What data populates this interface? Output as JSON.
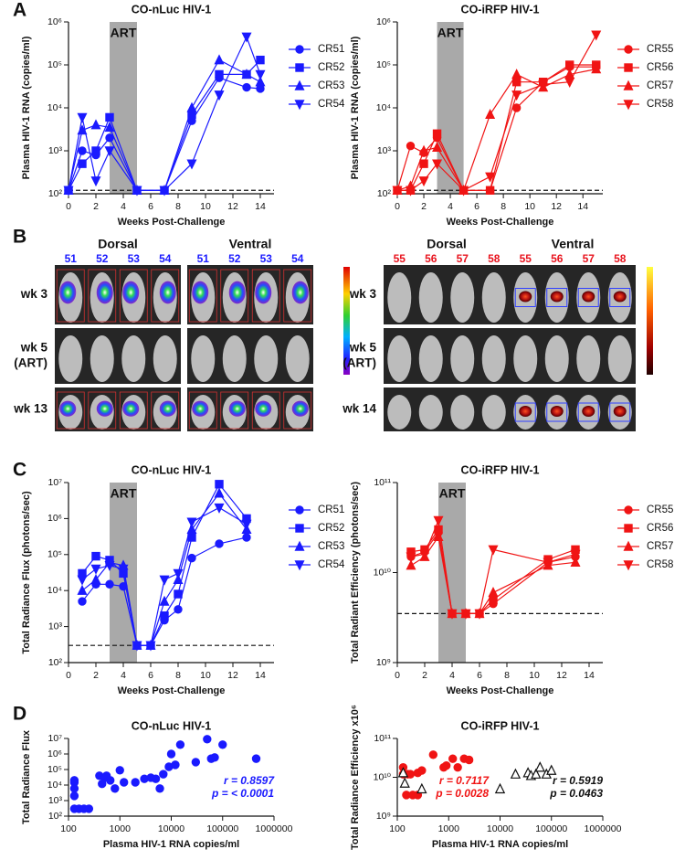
{
  "panel_labels": [
    "A",
    "B",
    "C",
    "D"
  ],
  "imaging": [
    {
      "views": [
        {
          "name": "Dorsal",
          "ids": [
            "51",
            "52",
            "53",
            "54"
          ]
        },
        {
          "name": "Ventral",
          "ids": [
            "51",
            "52",
            "53",
            "54"
          ]
        }
      ],
      "rows": [
        [
          "wk 3"
        ],
        [
          "wk 5",
          "(ART)"
        ],
        [
          "wk 13"
        ]
      ],
      "id_color": "#1a1aff"
    },
    {
      "views": [
        {
          "name": "Dorsal",
          "ids": [
            "55",
            "56",
            "57",
            "58"
          ]
        },
        {
          "name": "Ventral",
          "ids": [
            "55",
            "56",
            "57",
            "58"
          ]
        }
      ],
      "rows": [
        [
          "wk 3"
        ],
        [
          "wk 5",
          "(ART)"
        ],
        [
          "wk 14"
        ]
      ],
      "id_color": "#e8141e"
    }
  ],
  "chart_data": [
    {
      "type": "line",
      "title": "CO-nLuc HIV-1",
      "x_label": "Weeks Post-Challenge",
      "y_label": "Plasma HIV-1 RNA (copies/ml)",
      "x": [
        0,
        1,
        2,
        3,
        5,
        7,
        9,
        11,
        13,
        14
      ],
      "xlim": [
        0,
        15
      ],
      "xticks": [
        0,
        2,
        4,
        6,
        8,
        10,
        12,
        14
      ],
      "ylim": [
        100,
        1000000
      ],
      "yscale": "log",
      "yticks": [
        {
          "value": 100,
          "label": "10²"
        },
        {
          "value": 1000,
          "label": "10³"
        },
        {
          "value": 10000,
          "label": "10⁴"
        },
        {
          "value": 100000,
          "label": "10⁵"
        },
        {
          "value": 1000000,
          "label": "10⁶"
        }
      ],
      "shaded_region": {
        "xlim": [
          3,
          5
        ],
        "label": "ART"
      },
      "reference_line": 120,
      "legend": "right",
      "series": [
        {
          "name": "CR51",
          "color": "#1a1aff",
          "marker": "circle",
          "values": [
            120,
            1000,
            800,
            2000,
            120,
            120,
            5000,
            50000,
            30000,
            28000
          ]
        },
        {
          "name": "CR52",
          "color": "#1a1aff",
          "marker": "square",
          "values": [
            120,
            500,
            1000,
            6000,
            120,
            120,
            7000,
            60000,
            60000,
            130000
          ]
        },
        {
          "name": "CR53",
          "color": "#1a1aff",
          "marker": "triangle-up",
          "values": [
            120,
            3000,
            4000,
            3500,
            120,
            120,
            10000,
            130000,
            60000,
            40000
          ]
        },
        {
          "name": "CR54",
          "color": "#1a1aff",
          "marker": "triangle-down",
          "values": [
            120,
            6000,
            200,
            1000,
            120,
            120,
            500,
            20000,
            450000,
            60000
          ]
        }
      ]
    },
    {
      "type": "line",
      "title": "CO-iRFP HIV-1",
      "x_label": "Weeks Post-Challenge",
      "y_label": "Plasma HIV-1 RNA (copies/ml)",
      "x": [
        0,
        1,
        2,
        3,
        5,
        7,
        9,
        11,
        13,
        15
      ],
      "xlim": [
        0,
        15.5
      ],
      "xticks": [
        0,
        2,
        4,
        6,
        8,
        10,
        12,
        14
      ],
      "ylim": [
        100,
        1000000
      ],
      "yscale": "log",
      "yticks": [
        {
          "value": 100,
          "label": "10²"
        },
        {
          "value": 1000,
          "label": "10³"
        },
        {
          "value": 10000,
          "label": "10⁴"
        },
        {
          "value": 100000,
          "label": "10⁵"
        },
        {
          "value": 1000000,
          "label": "10⁶"
        }
      ],
      "shaded_region": {
        "xlim": [
          3,
          5
        ],
        "label": "ART"
      },
      "reference_line": 120,
      "legend": "right",
      "series": [
        {
          "name": "CR55",
          "color": "#f01414",
          "marker": "circle",
          "values": [
            120,
            1300,
            900,
            2000,
            120,
            120,
            10000,
            40000,
            90000,
            90000
          ]
        },
        {
          "name": "CR56",
          "color": "#f01414",
          "marker": "square",
          "values": [
            120,
            120,
            500,
            2500,
            120,
            120,
            40000,
            40000,
            100000,
            100000
          ]
        },
        {
          "name": "CR57",
          "color": "#f01414",
          "marker": "triangle-up",
          "values": [
            120,
            150,
            1000,
            1200,
            120,
            7000,
            60000,
            30000,
            60000,
            80000
          ]
        },
        {
          "name": "CR58",
          "color": "#f01414",
          "marker": "triangle-down",
          "values": [
            120,
            120,
            200,
            500,
            120,
            250,
            20000,
            35000,
            40000,
            500000
          ]
        }
      ]
    },
    {
      "type": "line",
      "title": "CO-nLuc HIV-1",
      "x_label": "Weeks Post-Challenge",
      "y_label": "Total Radiance Flux (photons/sec)",
      "x": [
        1,
        2,
        3,
        4,
        5,
        6,
        7,
        8,
        9,
        11,
        13
      ],
      "xlim": [
        0,
        15
      ],
      "xticks": [
        0,
        2,
        4,
        6,
        8,
        10,
        12,
        14
      ],
      "ylim": [
        100,
        10000000
      ],
      "yscale": "log",
      "yticks": [
        {
          "value": 100,
          "label": "10²"
        },
        {
          "value": 1000,
          "label": "10³"
        },
        {
          "value": 10000,
          "label": "10⁴"
        },
        {
          "value": 100000,
          "label": "10⁵"
        },
        {
          "value": 1000000,
          "label": "10⁶"
        },
        {
          "value": 10000000,
          "label": "10⁷"
        }
      ],
      "shaded_region": {
        "xlim": [
          3,
          5
        ],
        "label": "ART"
      },
      "reference_line": 300,
      "legend": "right",
      "series": [
        {
          "name": "CR51",
          "color": "#1a1aff",
          "marker": "circle",
          "values": [
            5000,
            15000,
            15000,
            13000,
            300,
            300,
            1500,
            3000,
            80000,
            200000,
            300000
          ]
        },
        {
          "name": "CR52",
          "color": "#1a1aff",
          "marker": "square",
          "values": [
            30000,
            90000,
            70000,
            30000,
            300,
            300,
            2000,
            8000,
            300000,
            9000000,
            1000000
          ]
        },
        {
          "name": "CR53",
          "color": "#1a1aff",
          "marker": "triangle-up",
          "values": [
            10000,
            20000,
            60000,
            50000,
            300,
            300,
            5000,
            20000,
            500000,
            5000000,
            500000
          ]
        },
        {
          "name": "CR54",
          "color": "#1a1aff",
          "marker": "triangle-down",
          "values": [
            20000,
            40000,
            50000,
            40000,
            300,
            300,
            20000,
            30000,
            800000,
            2000000,
            700000
          ]
        }
      ]
    },
    {
      "type": "line",
      "title": "CO-iRFP HIV-1",
      "x_label": "Weeks Post-Challenge",
      "y_label": "Total Radiant Efficiency (photons/sec)",
      "x": [
        1,
        2,
        3,
        4,
        5,
        6,
        7,
        11,
        13
      ],
      "xlim": [
        0,
        15
      ],
      "xticks": [
        0,
        2,
        4,
        6,
        8,
        10,
        12,
        14
      ],
      "ylim": [
        1000000000,
        100000000000
      ],
      "yscale": "log",
      "yticks": [
        {
          "value": 1000000000,
          "label": "10⁹"
        },
        {
          "value": 10000000000,
          "label": "10¹⁰"
        },
        {
          "value": 100000000000,
          "label": "10¹¹"
        }
      ],
      "shaded_region": {
        "xlim": [
          3,
          5
        ],
        "label": "ART"
      },
      "reference_line": 3500000000,
      "legend": "right",
      "series": [
        {
          "name": "CR55",
          "color": "#f01414",
          "marker": "circle",
          "values": [
            15000000000,
            17000000000,
            28000000000,
            3500000000,
            3500000000,
            3500000000,
            4500000000,
            13000000000,
            15000000000
          ]
        },
        {
          "name": "CR56",
          "color": "#f01414",
          "marker": "square",
          "values": [
            17000000000,
            18000000000,
            30000000000,
            3500000000,
            3500000000,
            3500000000,
            5000000000,
            14000000000,
            18000000000
          ]
        },
        {
          "name": "CR57",
          "color": "#f01414",
          "marker": "triangle-up",
          "values": [
            12000000000,
            15000000000,
            25000000000,
            3500000000,
            3500000000,
            3500000000,
            6000000000,
            12000000000,
            13000000000
          ]
        },
        {
          "name": "CR58",
          "color": "#f01414",
          "marker": "triangle-down",
          "values": [
            15000000000,
            16000000000,
            38000000000,
            3500000000,
            3500000000,
            3500000000,
            18000000000,
            13000000000,
            16000000000
          ]
        }
      ]
    },
    {
      "type": "scatter",
      "title": "CO-nLuc HIV-1",
      "x_label": "Plasma HIV-1 RNA copies/ml",
      "y_label": "Total Radiance Flux",
      "xlim": [
        100,
        1000000
      ],
      "xscale": "log",
      "xticks": [
        100,
        1000,
        10000,
        100000,
        1000000
      ],
      "ylim": [
        100,
        10000000
      ],
      "yscale": "log",
      "yticks": [
        {
          "value": 100,
          "label": "10²"
        },
        {
          "value": 1000,
          "label": "10³"
        },
        {
          "value": 10000,
          "label": "10⁴"
        },
        {
          "value": 100000,
          "label": "10⁵"
        },
        {
          "value": 1000000,
          "label": "10⁶"
        },
        {
          "value": 10000000,
          "label": "10⁷"
        }
      ],
      "annotations": [
        {
          "lines": [
            "r = 0.8597",
            "p = < 0.0001"
          ],
          "color": "#1a1aff"
        }
      ],
      "series": [
        {
          "color": "#1a1aff",
          "marker": "circle",
          "filled": true,
          "x": [
            130,
            130,
            130,
            130,
            130,
            160,
            200,
            250,
            400,
            450,
            500,
            550,
            650,
            800,
            1000,
            1200,
            2000,
            3000,
            4000,
            5000,
            6000,
            7000,
            9000,
            10000,
            12000,
            15000,
            30000,
            50000,
            60000,
            70000,
            100000,
            450000
          ],
          "values": [
            20000,
            15000,
            6000,
            2000,
            300,
            300,
            300,
            300,
            40000,
            12000,
            30000,
            40000,
            20000,
            6000,
            90000,
            15000,
            15000,
            25000,
            30000,
            25000,
            6000,
            50000,
            150000,
            1000000,
            200000,
            4000000,
            300000,
            9000000,
            500000,
            600000,
            4000000,
            500000
          ]
        }
      ]
    },
    {
      "type": "scatter",
      "title": "CO-iRFP HIV-1",
      "x_label": "Plasma HIV-1 RNA copies/ml",
      "y_label": "Total Radiance Efficiency x10⁶",
      "xlim": [
        100,
        1000000
      ],
      "xscale": "log",
      "xticks": [
        100,
        1000,
        10000,
        100000,
        1000000
      ],
      "ylim": [
        1000000000,
        100000000000
      ],
      "yscale": "log",
      "yticks": [
        {
          "value": 1000000000,
          "label": "10⁹"
        },
        {
          "value": 10000000000,
          "label": "10¹⁰"
        },
        {
          "value": 100000000000,
          "label": "10¹¹"
        }
      ],
      "annotations": [
        {
          "lines": [
            "r = 0.7117",
            "p = 0.0028"
          ],
          "color": "#f01414"
        },
        {
          "lines": [
            "r = 0.5919",
            "p = 0.0463"
          ],
          "color": "#111111"
        }
      ],
      "series": [
        {
          "color": "#f01414",
          "marker": "circle",
          "filled": true,
          "x": [
            130,
            130,
            150,
            160,
            180,
            200,
            250,
            250,
            300,
            500,
            800,
            900,
            1200,
            1500,
            2000,
            2500
          ],
          "values": [
            12000000000,
            18000000000,
            3500000000,
            12000000000,
            12000000000,
            3500000000,
            3500000000,
            13000000000,
            15000000000,
            38000000000,
            18000000000,
            20000000000,
            30000000000,
            18000000000,
            30000000000,
            28000000000
          ]
        },
        {
          "color": "#111111",
          "marker": "triangle-up",
          "filled": false,
          "x": [
            130,
            140,
            300,
            10000,
            20000,
            35000,
            40000,
            50000,
            60000,
            80000,
            100000
          ],
          "values": [
            13000000000,
            7000000000,
            5000000000,
            5000000000,
            12000000000,
            13000000000,
            11000000000,
            12000000000,
            18000000000,
            12000000000,
            15000000000
          ]
        }
      ]
    }
  ]
}
